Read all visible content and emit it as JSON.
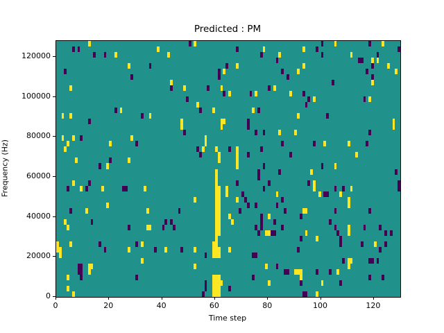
{
  "chart_data": {
    "type": "heatmap",
    "title": "Predicted : PM",
    "xlabel": "Time step",
    "ylabel": "Frequency (Hz)",
    "xlim": [
      0,
      130
    ],
    "ylim": [
      0,
      128000
    ],
    "xticks": [
      0,
      20,
      40,
      60,
      80,
      100,
      120
    ],
    "yticks": [
      0,
      20000,
      40000,
      60000,
      80000,
      100000,
      120000
    ],
    "grid_cols": 130,
    "grid_rows": 46,
    "legend": "none",
    "grid_lines": "off",
    "colors": {
      "background": "#21918c",
      "high": "#fde725",
      "low": "#440154",
      "figure_background": "#ffffff",
      "axis": "#000000"
    },
    "cells": {
      "yellow": [
        [
          12,
          45
        ],
        [
          52,
          45
        ],
        [
          105,
          45
        ],
        [
          123,
          45
        ],
        [
          38,
          44
        ],
        [
          78,
          44
        ],
        [
          93,
          44
        ],
        [
          22,
          43
        ],
        [
          42,
          43
        ],
        [
          84,
          43
        ],
        [
          111,
          43
        ],
        [
          119,
          42
        ],
        [
          121,
          42
        ],
        [
          27,
          41
        ],
        [
          68,
          41
        ],
        [
          93,
          41
        ],
        [
          125,
          41
        ],
        [
          63,
          40
        ],
        [
          91,
          40
        ],
        [
          128,
          40
        ],
        [
          43,
          38
        ],
        [
          119,
          38
        ],
        [
          5,
          37
        ],
        [
          48,
          37
        ],
        [
          62,
          37
        ],
        [
          82,
          37
        ],
        [
          65,
          36
        ],
        [
          75,
          36
        ],
        [
          88,
          36
        ],
        [
          97,
          35
        ],
        [
          118,
          35
        ],
        [
          53,
          34
        ],
        [
          24,
          33
        ],
        [
          59,
          33
        ],
        [
          74,
          33
        ],
        [
          2,
          32
        ],
        [
          5,
          32
        ],
        [
          35,
          32
        ],
        [
          91,
          32
        ],
        [
          47,
          31
        ],
        [
          62,
          31
        ],
        [
          63,
          31
        ],
        [
          127,
          31
        ],
        [
          47,
          30
        ],
        [
          62,
          30
        ],
        [
          127,
          30
        ],
        [
          84,
          29
        ],
        [
          90,
          29
        ],
        [
          2,
          28
        ],
        [
          6,
          28
        ],
        [
          28,
          28
        ],
        [
          56,
          28
        ],
        [
          4,
          27
        ],
        [
          20,
          27
        ],
        [
          56,
          27
        ],
        [
          101,
          27
        ],
        [
          110,
          27
        ],
        [
          3,
          26
        ],
        [
          55,
          26
        ],
        [
          60,
          26
        ],
        [
          68,
          26
        ],
        [
          61,
          25
        ],
        [
          68,
          25
        ],
        [
          113,
          25
        ],
        [
          7,
          24
        ],
        [
          27,
          24
        ],
        [
          61,
          24
        ],
        [
          68,
          24
        ],
        [
          19,
          23
        ],
        [
          68,
          23
        ],
        [
          105,
          23
        ],
        [
          60,
          22
        ],
        [
          96,
          22
        ],
        [
          60,
          21
        ],
        [
          6,
          20
        ],
        [
          60,
          20
        ],
        [
          97,
          20
        ],
        [
          9,
          19
        ],
        [
          17,
          19
        ],
        [
          33,
          19
        ],
        [
          60,
          19
        ],
        [
          61,
          19
        ],
        [
          64,
          19
        ],
        [
          97,
          19
        ],
        [
          111,
          19
        ],
        [
          60,
          18
        ],
        [
          61,
          18
        ],
        [
          64,
          18
        ],
        [
          83,
          18
        ],
        [
          99,
          18
        ],
        [
          107,
          18
        ],
        [
          52,
          17
        ],
        [
          60,
          17
        ],
        [
          61,
          17
        ],
        [
          68,
          17
        ],
        [
          110,
          17
        ],
        [
          19,
          16
        ],
        [
          60,
          16
        ],
        [
          61,
          16
        ],
        [
          110,
          16
        ],
        [
          11,
          15
        ],
        [
          34,
          15
        ],
        [
          60,
          15
        ],
        [
          61,
          15
        ],
        [
          93,
          15
        ],
        [
          94,
          15
        ],
        [
          60,
          14
        ],
        [
          61,
          14
        ],
        [
          65,
          14
        ],
        [
          80,
          14
        ],
        [
          3,
          13
        ],
        [
          60,
          13
        ],
        [
          61,
          13
        ],
        [
          66,
          13
        ],
        [
          4,
          12
        ],
        [
          34,
          12
        ],
        [
          35,
          12
        ],
        [
          60,
          12
        ],
        [
          61,
          12
        ],
        [
          110,
          12
        ],
        [
          60,
          11
        ],
        [
          61,
          11
        ],
        [
          79,
          11
        ],
        [
          80,
          11
        ],
        [
          94,
          11
        ],
        [
          110,
          11
        ],
        [
          60,
          10
        ],
        [
          98,
          10
        ],
        [
          0,
          9
        ],
        [
          5,
          9
        ],
        [
          32,
          9
        ],
        [
          59,
          9
        ],
        [
          60,
          9
        ],
        [
          120,
          9
        ],
        [
          0,
          8
        ],
        [
          1,
          8
        ],
        [
          27,
          8
        ],
        [
          41,
          8
        ],
        [
          52,
          8
        ],
        [
          59,
          8
        ],
        [
          60,
          8
        ],
        [
          61,
          8
        ],
        [
          65,
          8
        ],
        [
          1,
          7
        ],
        [
          59,
          7
        ],
        [
          60,
          7
        ],
        [
          61,
          7
        ],
        [
          32,
          6
        ],
        [
          110,
          6
        ],
        [
          111,
          6
        ],
        [
          12,
          5
        ],
        [
          13,
          5
        ],
        [
          52,
          5
        ],
        [
          79,
          5
        ],
        [
          110,
          5
        ],
        [
          12,
          4
        ],
        [
          90,
          4
        ],
        [
          91,
          4
        ],
        [
          92,
          4
        ],
        [
          106,
          4
        ],
        [
          4,
          3
        ],
        [
          59,
          3
        ],
        [
          60,
          3
        ],
        [
          61,
          3
        ],
        [
          92,
          3
        ],
        [
          59,
          2
        ],
        [
          60,
          2
        ],
        [
          61,
          2
        ],
        [
          62,
          2
        ],
        [
          80,
          2
        ],
        [
          100,
          2
        ],
        [
          4,
          1
        ],
        [
          59,
          1
        ],
        [
          60,
          1
        ],
        [
          61,
          1
        ],
        [
          6,
          0
        ],
        [
          59,
          0
        ],
        [
          60,
          0
        ],
        [
          61,
          0
        ],
        [
          98,
          0
        ]
      ],
      "dark": [
        [
          50,
          45
        ],
        [
          100,
          45
        ],
        [
          118,
          45
        ],
        [
          6,
          44
        ],
        [
          8,
          44
        ],
        [
          68,
          44
        ],
        [
          98,
          44
        ],
        [
          129,
          44
        ],
        [
          14,
          43
        ],
        [
          18,
          43
        ],
        [
          77,
          43
        ],
        [
          100,
          43
        ],
        [
          121,
          43
        ],
        [
          83,
          42
        ],
        [
          114,
          42
        ],
        [
          115,
          42
        ],
        [
          35,
          41
        ],
        [
          64,
          41
        ],
        [
          119,
          41
        ],
        [
          3,
          40
        ],
        [
          61,
          40
        ],
        [
          85,
          40
        ],
        [
          117,
          40
        ],
        [
          28,
          39
        ],
        [
          61,
          39
        ],
        [
          87,
          39
        ],
        [
          119,
          39
        ],
        [
          104,
          38
        ],
        [
          43,
          37
        ],
        [
          57,
          37
        ],
        [
          80,
          37
        ],
        [
          63,
          36
        ],
        [
          73,
          36
        ],
        [
          93,
          36
        ],
        [
          49,
          35
        ],
        [
          95,
          35
        ],
        [
          116,
          35
        ],
        [
          94,
          34
        ],
        [
          22,
          33
        ],
        [
          54,
          33
        ],
        [
          76,
          33
        ],
        [
          32,
          32
        ],
        [
          102,
          32
        ],
        [
          12,
          31
        ],
        [
          72,
          31
        ],
        [
          72,
          30
        ],
        [
          48,
          29
        ],
        [
          75,
          29
        ],
        [
          78,
          29
        ],
        [
          118,
          29
        ],
        [
          9,
          28
        ],
        [
          30,
          27
        ],
        [
          85,
          27
        ],
        [
          97,
          27
        ],
        [
          117,
          27
        ],
        [
          53,
          26
        ],
        [
          65,
          26
        ],
        [
          77,
          26
        ],
        [
          54,
          25
        ],
        [
          72,
          25
        ],
        [
          88,
          25
        ],
        [
          20,
          24
        ],
        [
          16,
          23
        ],
        [
          78,
          23
        ],
        [
          100,
          23
        ],
        [
          76,
          22
        ],
        [
          84,
          22
        ],
        [
          128,
          22
        ],
        [
          76,
          21
        ],
        [
          12,
          20
        ],
        [
          68,
          20
        ],
        [
          80,
          20
        ],
        [
          95,
          20
        ],
        [
          129,
          20
        ],
        [
          4,
          19
        ],
        [
          11,
          19
        ],
        [
          25,
          19
        ],
        [
          26,
          19
        ],
        [
          78,
          19
        ],
        [
          105,
          19
        ],
        [
          108,
          19
        ],
        [
          129,
          19
        ],
        [
          70,
          18
        ],
        [
          101,
          18
        ],
        [
          102,
          18
        ],
        [
          71,
          17
        ],
        [
          85,
          17
        ],
        [
          72,
          16
        ],
        [
          75,
          16
        ],
        [
          83,
          16
        ],
        [
          5,
          15
        ],
        [
          46,
          15
        ],
        [
          69,
          15
        ],
        [
          86,
          15
        ],
        [
          105,
          15
        ],
        [
          118,
          15
        ],
        [
          77,
          14
        ],
        [
          92,
          14
        ],
        [
          13,
          13
        ],
        [
          41,
          13
        ],
        [
          43,
          13
        ],
        [
          77,
          13
        ],
        [
          82,
          13
        ],
        [
          103,
          13
        ],
        [
          27,
          12
        ],
        [
          40,
          12
        ],
        [
          44,
          12
        ],
        [
          75,
          12
        ],
        [
          77,
          12
        ],
        [
          85,
          12
        ],
        [
          105,
          12
        ],
        [
          116,
          12
        ],
        [
          122,
          12
        ],
        [
          76,
          11
        ],
        [
          81,
          11
        ],
        [
          82,
          11
        ],
        [
          106,
          11
        ],
        [
          124,
          11
        ],
        [
          126,
          11
        ],
        [
          92,
          10
        ],
        [
          107,
          10
        ],
        [
          16,
          9
        ],
        [
          30,
          9
        ],
        [
          107,
          9
        ],
        [
          115,
          9
        ],
        [
          124,
          9
        ],
        [
          18,
          8
        ],
        [
          37,
          8
        ],
        [
          47,
          8
        ],
        [
          91,
          8
        ],
        [
          122,
          8
        ],
        [
          56,
          7
        ],
        [
          74,
          7
        ],
        [
          75,
          7
        ],
        [
          108,
          6
        ],
        [
          118,
          6
        ],
        [
          119,
          6
        ],
        [
          121,
          6
        ],
        [
          8,
          5
        ],
        [
          9,
          5
        ],
        [
          83,
          5
        ],
        [
          8,
          4
        ],
        [
          9,
          4
        ],
        [
          86,
          4
        ],
        [
          87,
          4
        ],
        [
          98,
          4
        ],
        [
          103,
          4
        ],
        [
          9,
          3
        ],
        [
          30,
          3
        ],
        [
          74,
          3
        ],
        [
          118,
          3
        ],
        [
          123,
          3
        ],
        [
          56,
          2
        ],
        [
          92,
          2
        ],
        [
          107,
          2
        ],
        [
          56,
          1
        ],
        [
          65,
          1
        ],
        [
          55,
          0
        ],
        [
          93,
          0
        ],
        [
          94,
          0
        ]
      ]
    }
  }
}
